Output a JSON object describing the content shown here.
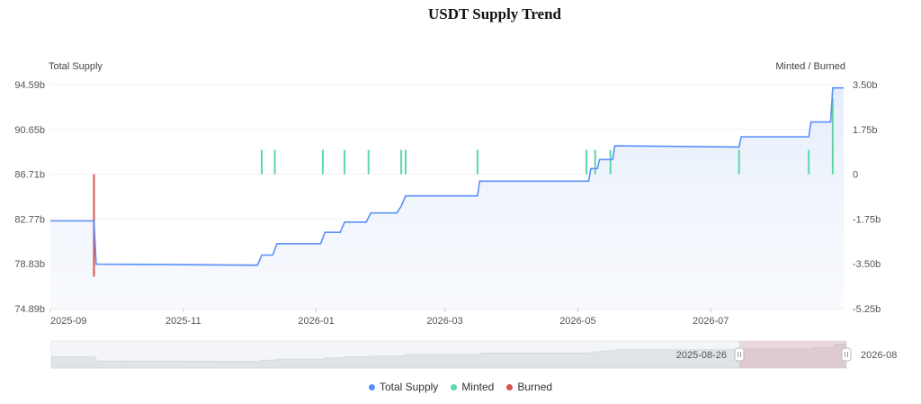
{
  "chart_data": {
    "type": "line",
    "title": "USDT Supply Trend",
    "y_left_label": "Total Supply",
    "y_right_label": "Minted / Burned",
    "y_left_ticks": [
      "94.59b",
      "90.65b",
      "86.71b",
      "82.77b",
      "78.83b",
      "74.89b"
    ],
    "y_left_range": [
      74.89,
      94.59
    ],
    "y_right_ticks": [
      "3.50b",
      "1.75b",
      "0",
      "-1.75b",
      "-3.50b",
      "-5.25b"
    ],
    "y_right_range": [
      -5.25,
      3.5
    ],
    "x_ticks": [
      {
        "label": "2025-09",
        "day": 0
      },
      {
        "label": "2025-11",
        "day": 61
      },
      {
        "label": "2026-01",
        "day": 122
      },
      {
        "label": "2026-03",
        "day": 181
      },
      {
        "label": "2026-05",
        "day": 242
      },
      {
        "label": "2026-07",
        "day": 303
      }
    ],
    "x_range_days": [
      0,
      364
    ],
    "series": [
      {
        "name": "Total Supply",
        "type": "line",
        "color": "#5b8ff9",
        "points": [
          [
            0,
            82.6
          ],
          [
            20,
            82.6
          ],
          [
            21,
            78.8
          ],
          [
            95,
            78.7
          ],
          [
            97,
            79.6
          ],
          [
            102,
            79.6
          ],
          [
            104,
            80.6
          ],
          [
            124,
            80.6
          ],
          [
            126,
            81.6
          ],
          [
            133,
            81.6
          ],
          [
            135,
            82.5
          ],
          [
            145,
            82.5
          ],
          [
            147,
            83.3
          ],
          [
            159,
            83.3
          ],
          [
            161,
            83.9
          ],
          [
            163,
            84.8
          ],
          [
            196,
            84.8
          ],
          [
            197,
            86.1
          ],
          [
            247,
            86.1
          ],
          [
            248,
            87.2
          ],
          [
            251,
            87.2
          ],
          [
            252,
            88.0
          ],
          [
            258,
            88.0
          ],
          [
            259,
            89.2
          ],
          [
            316,
            89.1
          ],
          [
            317,
            90.0
          ],
          [
            348,
            90.0
          ],
          [
            349,
            91.3
          ],
          [
            358,
            91.3
          ],
          [
            359,
            94.3
          ],
          [
            364,
            94.3
          ]
        ]
      },
      {
        "name": "Minted",
        "type": "bar",
        "color": "#5ad8a6",
        "bars": [
          [
            97,
            0.95
          ],
          [
            103,
            0.95
          ],
          [
            125,
            0.95
          ],
          [
            135,
            0.95
          ],
          [
            146,
            0.95
          ],
          [
            161,
            0.95
          ],
          [
            163,
            0.95
          ],
          [
            196,
            0.95
          ],
          [
            246,
            0.95
          ],
          [
            250,
            0.95
          ],
          [
            257,
            0.95
          ],
          [
            316,
            0.95
          ],
          [
            348,
            0.95
          ],
          [
            359,
            2.95
          ]
        ]
      },
      {
        "name": "Burned",
        "type": "bar",
        "color": "#d9534f",
        "bars": [
          [
            20,
            -4.0
          ]
        ]
      }
    ],
    "datazoom": {
      "start_label": "2025-08-26",
      "end_label": "2026-08"
    },
    "legend_position": "bottom-center"
  },
  "legend": [
    {
      "label": "Total Supply",
      "color": "#5b8ff9"
    },
    {
      "label": "Minted",
      "color": "#5ad8a6"
    },
    {
      "label": "Burned",
      "color": "#d9534f"
    }
  ]
}
